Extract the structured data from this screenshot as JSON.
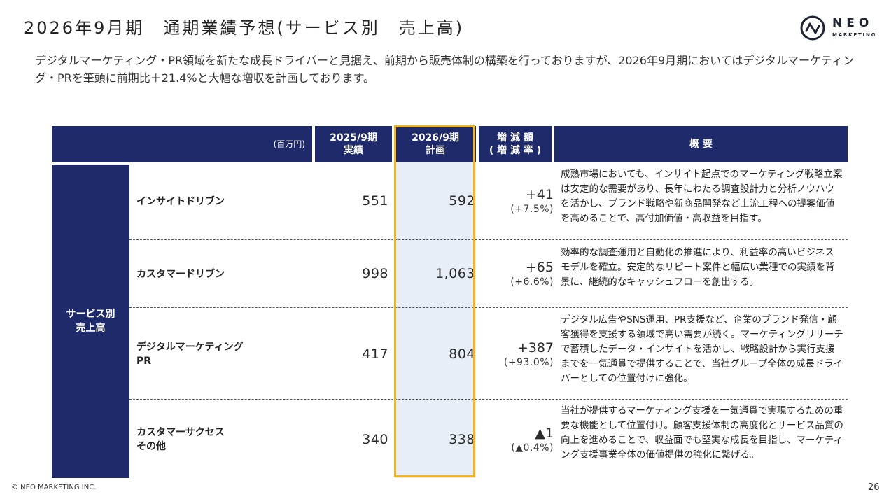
{
  "title": "2026年9月期　通期業績予想(サービス別　売上高)",
  "logo": {
    "word": "NEO",
    "sub": "MARKETING"
  },
  "lead_text": "デジタルマーケティング・PR領域を新たな成長ドライバーと見据え、前期から販売体制の構築を行っておりますが、2026年9月期においてはデジタルマーケティング・PRを筆頭に前期比＋21.4%と大幅な増収を計画しております。",
  "table": {
    "header": {
      "unit": "(百万円)",
      "col_actual_line1": "2025/9期",
      "col_actual_line2": "実績",
      "col_plan_line1": "2026/9期",
      "col_plan_line2": "計画",
      "col_delta_line1": "増 減 額",
      "col_delta_line2": "( 増 減 率 )",
      "col_summary": "概 要"
    },
    "side_label_line1": "サービス別",
    "side_label_line2": "売上高",
    "rows": [
      {
        "name_line1": "インサイトドリブン",
        "name_line2": "",
        "actual": "551",
        "plan": "592",
        "delta": "+41",
        "delta_rate": "(+7.5%)",
        "summary": "成熟市場においても、インサイト起点でのマーケティング戦略立案は安定的な需要があり、長年にわたる調査設計力と分析ノウハウを活かし、ブランド戦略や新商品開発など上流工程への提案価値を高めることで、高付加価値・高収益を目指す。"
      },
      {
        "name_line1": "カスタマードリブン",
        "name_line2": "",
        "actual": "998",
        "plan": "1,063",
        "delta": "+65",
        "delta_rate": "(+6.6%)",
        "summary": "効率的な調査運用と自動化の推進により、利益率の高いビジネスモデルを確立。安定的なリピート案件と幅広い業種での実績を背景に、継続的なキャッシュフローを創出する。"
      },
      {
        "name_line1": "デジタルマーケティング",
        "name_line2": "PR",
        "actual": "417",
        "plan": "804",
        "delta": "+387",
        "delta_rate": "(+93.0%)",
        "summary": "デジタル広告やSNS運用、PR支援など、企業のブランド発信・顧客獲得を支援する領域で高い需要が続く。マーケティングリサーチで蓄積したデータ・インサイトを活かし、戦略設計から実行支援までを一気通貫で提供することで、当社グループ全体の成長ドライバーとしての位置付けに強化。"
      },
      {
        "name_line1": "カスタマーサクセス",
        "name_line2": "その他",
        "actual": "340",
        "plan": "338",
        "delta": "▲1",
        "delta_rate": "(▲0.4%)",
        "summary": "当社が提供するマーケティング支援を一気通貫で実現するための重要な機能として位置付け。顧客支援体制の高度化とサービス品質の向上を進めることで、収益面でも堅実な成長を目指し、マーケティング支援事業全体の価値提供の強化に繋げる。"
      }
    ]
  },
  "footer": "© NEO MARKETING INC.",
  "page_number": "26",
  "colors": {
    "navy": "#1f2a6b",
    "highlight": "#f2b51e",
    "highlight_fill": "#e8eef8"
  }
}
